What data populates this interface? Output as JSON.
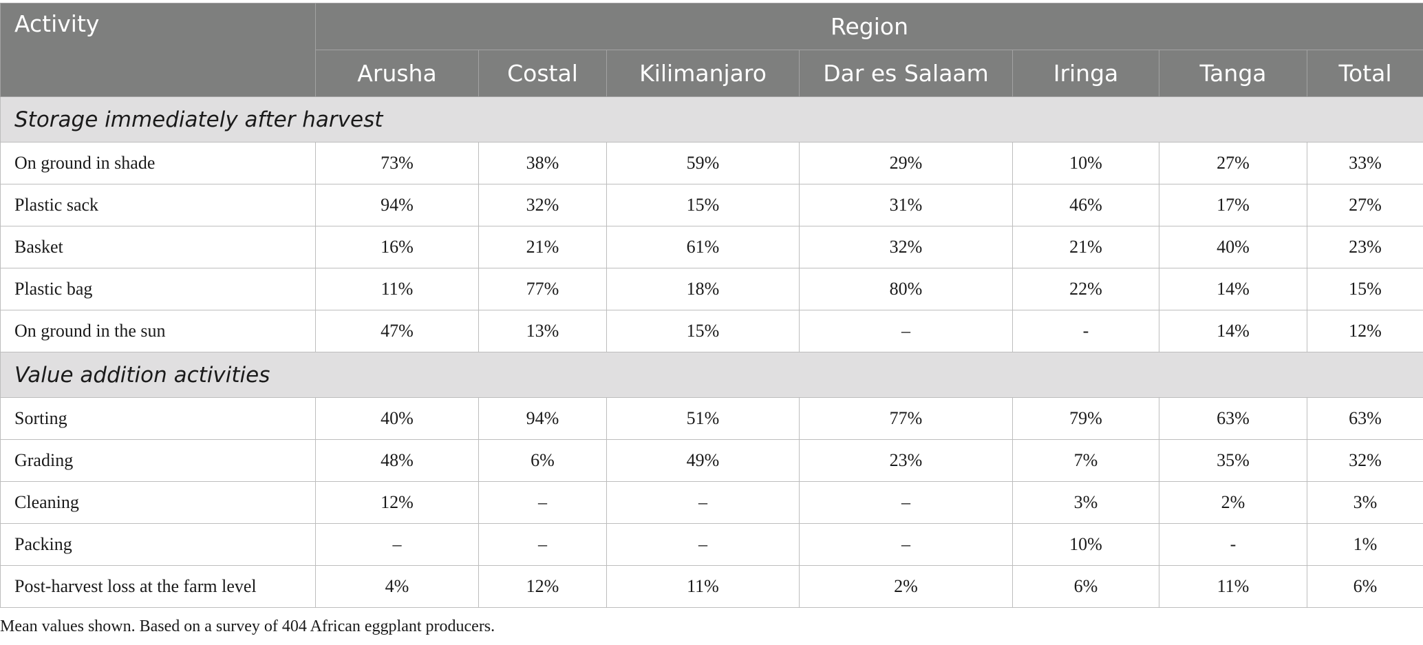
{
  "header": {
    "activity": "Activity",
    "region": "Region",
    "columns": [
      "Arusha",
      "Costal",
      "Kilimanjaro",
      "Dar es Salaam",
      "Iringa",
      "Tanga",
      "Total"
    ]
  },
  "sections": [
    {
      "title": "Storage immediately after harvest",
      "rows": [
        {
          "label": "On ground in shade",
          "values": [
            "73%",
            "38%",
            "59%",
            "29%",
            "10%",
            "27%",
            "33%"
          ]
        },
        {
          "label": "Plastic sack",
          "values": [
            "94%",
            "32%",
            "15%",
            "31%",
            "46%",
            "17%",
            "27%"
          ]
        },
        {
          "label": "Basket",
          "values": [
            "16%",
            "21%",
            "61%",
            "32%",
            "21%",
            "40%",
            "23%"
          ]
        },
        {
          "label": "Plastic bag",
          "values": [
            "11%",
            "77%",
            "18%",
            "80%",
            "22%",
            "14%",
            "15%"
          ]
        },
        {
          "label": "On ground in the sun",
          "values": [
            "47%",
            "13%",
            "15%",
            "–",
            "-",
            "14%",
            "12%"
          ]
        }
      ]
    },
    {
      "title": "Value addition activities",
      "rows": [
        {
          "label": "Sorting",
          "values": [
            "40%",
            "94%",
            "51%",
            "77%",
            "79%",
            "63%",
            "63%"
          ]
        },
        {
          "label": "Grading",
          "values": [
            "48%",
            "6%",
            "49%",
            "23%",
            "7%",
            "35%",
            "32%"
          ]
        },
        {
          "label": "Cleaning",
          "values": [
            "12%",
            "–",
            "–",
            "–",
            "3%",
            "2%",
            "3%"
          ]
        },
        {
          "label": "Packing",
          "values": [
            "–",
            "–",
            "–",
            "–",
            "10%",
            "-",
            "1%"
          ]
        },
        {
          "label": "Post-harvest loss at the farm level",
          "values": [
            "4%",
            "12%",
            "11%",
            "2%",
            "6%",
            "11%",
            "6%"
          ]
        }
      ]
    }
  ],
  "footnote": "Mean values shown. Based on a survey of 404 African eggplant producers."
}
